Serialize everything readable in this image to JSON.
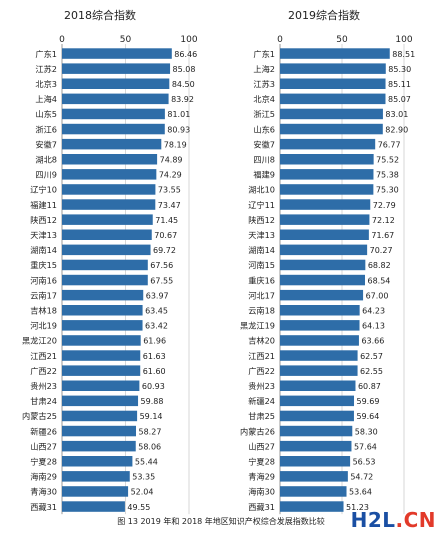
{
  "caption": "图 13   2019 年和 2018 年地区知识产权综合发展指数比较",
  "watermark": {
    "main": "H2L",
    "suffix": ".CN"
  },
  "colors": {
    "bar": "#2e6da8",
    "grid": "#d7d7d7",
    "text": "#222222"
  },
  "chart_data": [
    {
      "type": "bar",
      "orientation": "horizontal",
      "title": "2018综合指数",
      "xlim": [
        0,
        100
      ],
      "xticks": [
        0,
        50,
        100
      ],
      "grid": true,
      "categories": [
        "广东1",
        "江苏2",
        "北京3",
        "上海4",
        "山东5",
        "浙江6",
        "安徽7",
        "湖北8",
        "四川9",
        "辽宁10",
        "福建11",
        "陕西12",
        "天津13",
        "湖南14",
        "重庆15",
        "河南16",
        "云南17",
        "吉林18",
        "河北19",
        "黑龙江20",
        "江西21",
        "广西22",
        "贵州23",
        "甘肃24",
        "内蒙古25",
        "新疆26",
        "山西27",
        "宁夏28",
        "海南29",
        "青海30",
        "西藏31"
      ],
      "values": [
        86.46,
        85.08,
        84.5,
        83.92,
        81.01,
        80.93,
        78.19,
        74.89,
        74.29,
        73.55,
        73.47,
        71.45,
        70.67,
        69.72,
        67.56,
        67.55,
        63.97,
        63.45,
        63.42,
        61.96,
        61.63,
        61.6,
        60.93,
        59.88,
        59.14,
        58.27,
        58.06,
        55.44,
        53.35,
        52.04,
        49.55
      ],
      "labels": [
        "86.46",
        "85.08",
        "84.50",
        "83.92",
        "81.01",
        "80.93",
        "78.19",
        "74.89",
        "74.29",
        "73.55",
        "73.47",
        "71.45",
        "70.67",
        "69.72",
        "67.56",
        "67.55",
        "63.97",
        "63.45",
        "63.42",
        "61.96",
        "61.63",
        "61.60",
        "60.93",
        "59.88",
        "59.14",
        "58.27",
        "58.06",
        "55.44",
        "53.35",
        "52.04",
        "49.55"
      ]
    },
    {
      "type": "bar",
      "orientation": "horizontal",
      "title": "2019综合指数",
      "xlim": [
        0,
        100
      ],
      "xticks": [
        0,
        50,
        100
      ],
      "grid": true,
      "categories": [
        "广东1",
        "上海2",
        "江苏3",
        "北京4",
        "浙江5",
        "山东6",
        "安徽7",
        "四川8",
        "福建9",
        "湖北10",
        "辽宁11",
        "陕西12",
        "天津13",
        "湖南14",
        "河南15",
        "重庆16",
        "河北17",
        "云南18",
        "黑龙江19",
        "吉林20",
        "江西21",
        "广西22",
        "贵州23",
        "新疆24",
        "甘肃25",
        "内蒙古26",
        "山西27",
        "宁夏28",
        "青海29",
        "海南30",
        "西藏31"
      ],
      "values": [
        88.51,
        85.3,
        85.11,
        85.07,
        83.01,
        82.9,
        76.77,
        75.52,
        75.38,
        75.3,
        72.79,
        72.12,
        71.67,
        70.27,
        68.82,
        68.54,
        67.0,
        64.23,
        64.13,
        63.66,
        62.57,
        62.55,
        60.87,
        59.69,
        59.64,
        58.3,
        57.64,
        56.53,
        54.72,
        53.64,
        51.23
      ],
      "labels": [
        "88.51",
        "85.30",
        "85.11",
        "85.07",
        "83.01",
        "82.90",
        "76.77",
        "75.52",
        "75.38",
        "75.30",
        "72.79",
        "72.12",
        "71.67",
        "70.27",
        "68.82",
        "68.54",
        "67.00",
        "64.23",
        "64.13",
        "63.66",
        "62.57",
        "62.55",
        "60.87",
        "59.69",
        "59.64",
        "58.30",
        "57.64",
        "56.53",
        "54.72",
        "53.64",
        "51.23"
      ]
    }
  ]
}
